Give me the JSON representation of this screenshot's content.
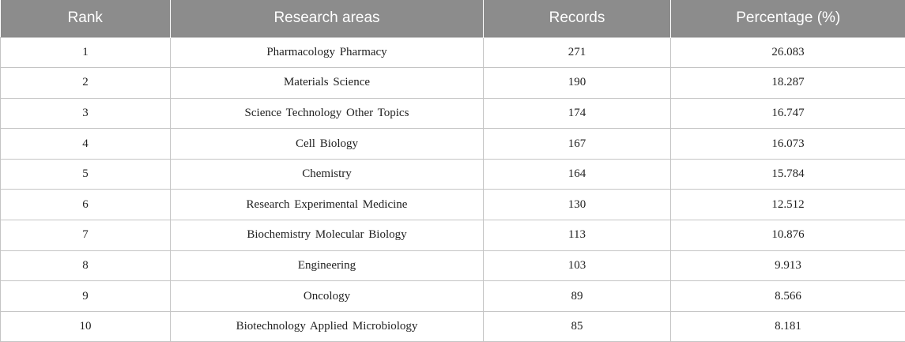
{
  "table": {
    "headers": [
      "Rank",
      "Research areas",
      "Records",
      "Percentage (%)"
    ],
    "rows": [
      [
        "1",
        "Pharmacology Pharmacy",
        "271",
        "26.083"
      ],
      [
        "2",
        "Materials Science",
        "190",
        "18.287"
      ],
      [
        "3",
        "Science Technology Other Topics",
        "174",
        "16.747"
      ],
      [
        "4",
        "Cell Biology",
        "167",
        "16.073"
      ],
      [
        "5",
        "Chemistry",
        "164",
        "15.784"
      ],
      [
        "6",
        "Research Experimental Medicine",
        "130",
        "12.512"
      ],
      [
        "7",
        "Biochemistry Molecular Biology",
        "113",
        "10.876"
      ],
      [
        "8",
        "Engineering",
        "103",
        "9.913"
      ],
      [
        "9",
        "Oncology",
        "89",
        "8.566"
      ],
      [
        "10",
        "Biotechnology Applied Microbiology",
        "85",
        "8.181"
      ]
    ]
  },
  "colors": {
    "header_background": "#8c8c8c",
    "header_text": "#ffffff",
    "grid_line": "#c4c4c4"
  }
}
